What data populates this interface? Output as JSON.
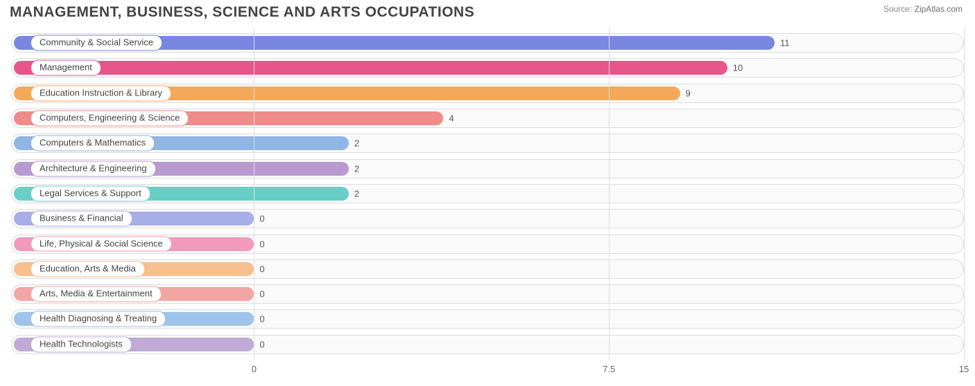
{
  "title": "MANAGEMENT, BUSINESS, SCIENCE AND ARTS OCCUPATIONS",
  "source_label": "Source:",
  "source_site": "ZipAtlas.com",
  "chart": {
    "type": "bar-horizontal",
    "xmin": 0,
    "xmax": 15,
    "ticks": [
      {
        "value": 0,
        "label": "0"
      },
      {
        "value": 7.5,
        "label": "7.5"
      },
      {
        "value": 15,
        "label": "15"
      }
    ],
    "grid_color": "#dddddd",
    "track_border": "#dcdcdc",
    "track_bg": "#fafafa",
    "background_color": "#ffffff",
    "label_fontsize": 13,
    "value_fontsize": 13,
    "bar_radius": 11,
    "min_fill_pct": 22,
    "left_origin_pct": 25.5,
    "series": [
      {
        "label": "Community & Social Service",
        "value": 11,
        "color": "#7a87e0"
      },
      {
        "label": "Management",
        "value": 10,
        "color": "#e8558b"
      },
      {
        "label": "Education Instruction & Library",
        "value": 9,
        "color": "#f3a95a"
      },
      {
        "label": "Computers, Engineering & Science",
        "value": 4,
        "color": "#ef8c8a"
      },
      {
        "label": "Computers & Mathematics",
        "value": 2,
        "color": "#8fb6e4"
      },
      {
        "label": "Architecture & Engineering",
        "value": 2,
        "color": "#b89ad0"
      },
      {
        "label": "Legal Services & Support",
        "value": 2,
        "color": "#69cfc6"
      },
      {
        "label": "Business & Financial",
        "value": 0,
        "color": "#a6afe6"
      },
      {
        "label": "Life, Physical & Social Science",
        "value": 0,
        "color": "#f29abb"
      },
      {
        "label": "Education, Arts & Media",
        "value": 0,
        "color": "#f6c18e"
      },
      {
        "label": "Arts, Media & Entertainment",
        "value": 0,
        "color": "#f2a6a4"
      },
      {
        "label": "Health Diagnosing & Treating",
        "value": 0,
        "color": "#9ec4ea"
      },
      {
        "label": "Health Technologists",
        "value": 0,
        "color": "#c0aad6"
      }
    ]
  }
}
